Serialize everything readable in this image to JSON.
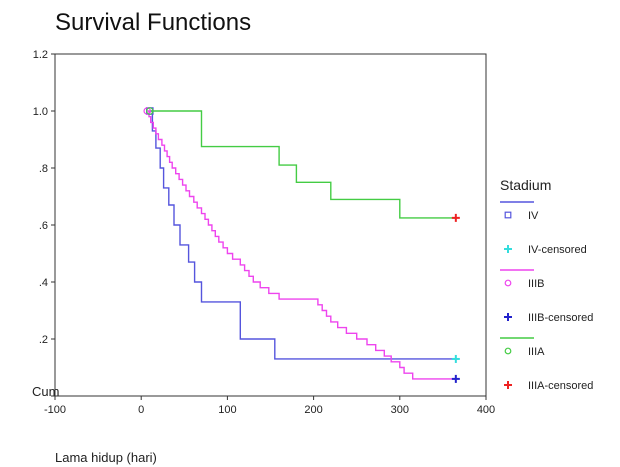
{
  "chart_data": {
    "type": "line",
    "title": "Survival Functions",
    "xlabel": "Lama hidup (hari)",
    "ylabel": "Cum",
    "xlim": [
      -100,
      400
    ],
    "ylim": [
      0,
      1.2
    ],
    "x_ticks": [
      -100,
      0,
      100,
      200,
      300,
      400
    ],
    "y_ticks": [
      0,
      0.2,
      0.4,
      0.6,
      0.8,
      1.0,
      1.2
    ],
    "x_tick_labels": [
      "-100",
      "0",
      "100",
      "200",
      "300",
      "400"
    ],
    "y_tick_labels": [
      "",
      ".2",
      ".4",
      ".6",
      ".8",
      "1.0",
      "1.2"
    ],
    "grid": false,
    "legend_placement": "right",
    "legend": {
      "title": "Stadium",
      "entries": [
        {
          "label": "IV",
          "kind": "line",
          "marker": "square",
          "color": "#5555dd"
        },
        {
          "label": "IV-censored",
          "kind": "marker",
          "marker": "plus",
          "color": "#33dddd"
        },
        {
          "label": "IIIB",
          "kind": "line",
          "marker": "circle",
          "color": "#ee44ee"
        },
        {
          "label": "IIIB-censored",
          "kind": "marker",
          "marker": "plus",
          "color": "#2222cc"
        },
        {
          "label": "IIIA",
          "kind": "line",
          "marker": "circle",
          "color": "#44cc44"
        },
        {
          "label": "IIIA-censored",
          "kind": "marker",
          "marker": "plus",
          "color": "#ee2222"
        }
      ]
    },
    "series": [
      {
        "name": "IV",
        "color": "#5555dd",
        "step_points": [
          [
            10,
            1.0
          ],
          [
            13,
            0.93
          ],
          [
            17,
            0.87
          ],
          [
            22,
            0.8
          ],
          [
            26,
            0.73
          ],
          [
            32,
            0.67
          ],
          [
            38,
            0.6
          ],
          [
            45,
            0.53
          ],
          [
            55,
            0.47
          ],
          [
            62,
            0.4
          ],
          [
            70,
            0.33
          ],
          [
            115,
            0.2
          ],
          [
            155,
            0.13
          ],
          [
            365,
            0.13
          ]
        ]
      },
      {
        "name": "IIIB",
        "color": "#ee44ee",
        "step_points": [
          [
            7,
            1.0
          ],
          [
            9,
            0.98
          ],
          [
            11,
            0.96
          ],
          [
            14,
            0.94
          ],
          [
            17,
            0.92
          ],
          [
            20,
            0.9
          ],
          [
            24,
            0.88
          ],
          [
            27,
            0.86
          ],
          [
            30,
            0.84
          ],
          [
            33,
            0.82
          ],
          [
            36,
            0.8
          ],
          [
            40,
            0.78
          ],
          [
            44,
            0.76
          ],
          [
            48,
            0.74
          ],
          [
            52,
            0.72
          ],
          [
            56,
            0.7
          ],
          [
            61,
            0.68
          ],
          [
            65,
            0.66
          ],
          [
            70,
            0.64
          ],
          [
            74,
            0.62
          ],
          [
            78,
            0.6
          ],
          [
            82,
            0.58
          ],
          [
            86,
            0.56
          ],
          [
            90,
            0.54
          ],
          [
            95,
            0.52
          ],
          [
            100,
            0.5
          ],
          [
            106,
            0.48
          ],
          [
            115,
            0.46
          ],
          [
            120,
            0.44
          ],
          [
            125,
            0.42
          ],
          [
            130,
            0.4
          ],
          [
            138,
            0.38
          ],
          [
            148,
            0.36
          ],
          [
            160,
            0.34
          ],
          [
            185,
            0.34
          ],
          [
            205,
            0.32
          ],
          [
            210,
            0.3
          ],
          [
            215,
            0.28
          ],
          [
            220,
            0.26
          ],
          [
            228,
            0.24
          ],
          [
            238,
            0.22
          ],
          [
            250,
            0.2
          ],
          [
            262,
            0.18
          ],
          [
            272,
            0.16
          ],
          [
            282,
            0.14
          ],
          [
            290,
            0.12
          ],
          [
            300,
            0.1
          ],
          [
            305,
            0.08
          ],
          [
            315,
            0.06
          ],
          [
            365,
            0.06
          ]
        ]
      },
      {
        "name": "IIIA",
        "color": "#44cc44",
        "step_points": [
          [
            10,
            1.0
          ],
          [
            65,
            1.0
          ],
          [
            70,
            0.875
          ],
          [
            155,
            0.875
          ],
          [
            160,
            0.81
          ],
          [
            175,
            0.81
          ],
          [
            180,
            0.75
          ],
          [
            215,
            0.75
          ],
          [
            220,
            0.69
          ],
          [
            295,
            0.69
          ],
          [
            300,
            0.625
          ],
          [
            365,
            0.625
          ]
        ]
      }
    ],
    "censored_points": [
      {
        "name": "IV-censored",
        "x": 365,
        "y": 0.13,
        "color": "#33dddd"
      },
      {
        "name": "IIIB-censored",
        "x": 365,
        "y": 0.06,
        "color": "#2222cc"
      },
      {
        "name": "IIIA-censored",
        "x": 365,
        "y": 0.625,
        "color": "#ee2222"
      }
    ],
    "start_markers": [
      {
        "series": "IV",
        "x": 10,
        "y": 1.0,
        "marker": "square",
        "color": "#5555dd"
      },
      {
        "series": "IIIB",
        "x": 7,
        "y": 1.0,
        "marker": "circle",
        "color": "#ee44ee"
      },
      {
        "series": "IIIA",
        "x": 10,
        "y": 1.0,
        "marker": "circle",
        "color": "#44cc44"
      }
    ]
  }
}
